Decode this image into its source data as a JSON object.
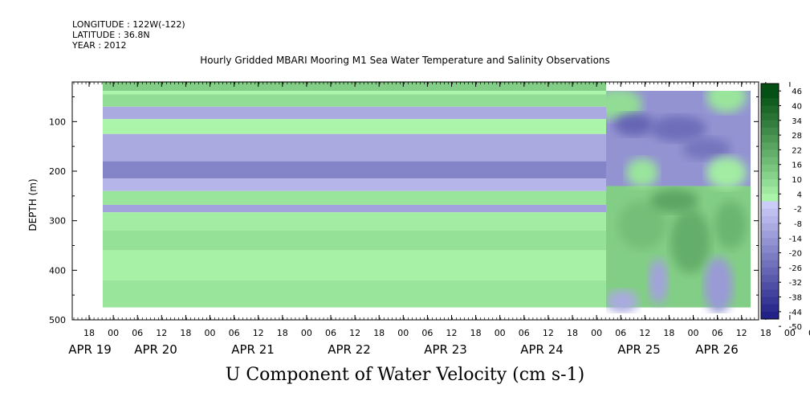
{
  "header": {
    "longitude": "LONGITUDE : 122W(-122)",
    "latitude": "LATITUDE : 36.8N",
    "year": "YEAR : 2012"
  },
  "chart_data": {
    "type": "heatmap",
    "title": "Hourly Gridded MBARI Mooring M1 Sea Water Temperature and Salinity Observations",
    "xlabel": "U Component of Water Velocity (cm s-1)",
    "ylabel": "DEPTH (m)",
    "ylim": [
      0,
      500
    ],
    "y_inverted": true,
    "y_ticks": [
      100,
      200,
      300,
      400,
      500
    ],
    "x_hour_ticks": [
      "18",
      "00",
      "06",
      "12",
      "18",
      "00",
      "06",
      "12",
      "18",
      "00",
      "06",
      "12",
      "18",
      "00",
      "06",
      "12",
      "18",
      "00",
      "06",
      "12",
      "18",
      "00",
      "06",
      "12",
      "18",
      "00",
      "06",
      "12",
      "18",
      "00",
      "06",
      "12"
    ],
    "x_day_labels": [
      "APR 19",
      "APR 20",
      "APR 21",
      "APR 22",
      "APR 23",
      "APR 24",
      "APR 25",
      "APR 26"
    ],
    "colorbar": {
      "labels": [
        46,
        40,
        34,
        28,
        22,
        16,
        10,
        4,
        -2,
        -8,
        -14,
        -20,
        -26,
        -32,
        -38,
        -44,
        -50
      ]
    },
    "data_region": {
      "depth_range": [
        20,
        475
      ],
      "uniform_bands": [
        {
          "d0": 20,
          "d1": 38,
          "v": 14
        },
        {
          "d0": 38,
          "d1": 45,
          "v": 4
        },
        {
          "d0": 45,
          "d1": 70,
          "v": 10
        },
        {
          "d0": 70,
          "d1": 95,
          "v": -8
        },
        {
          "d0": 95,
          "d1": 125,
          "v": 4
        },
        {
          "d0": 125,
          "d1": 180,
          "v": -8
        },
        {
          "d0": 180,
          "d1": 215,
          "v": -18
        },
        {
          "d0": 215,
          "d1": 240,
          "v": -5
        },
        {
          "d0": 240,
          "d1": 268,
          "v": 8
        },
        {
          "d0": 268,
          "d1": 283,
          "v": -10
        },
        {
          "d0": 283,
          "d1": 320,
          "v": 6
        },
        {
          "d0": 320,
          "d1": 360,
          "v": 9
        },
        {
          "d0": 360,
          "d1": 420,
          "v": 5
        },
        {
          "d0": 420,
          "d1": 475,
          "v": 8
        }
      ],
      "variable_section": "APR 25 onward: negative (blue) velocities above ~230 m, positive (green) below, with blue patches near 380-470 m"
    }
  }
}
